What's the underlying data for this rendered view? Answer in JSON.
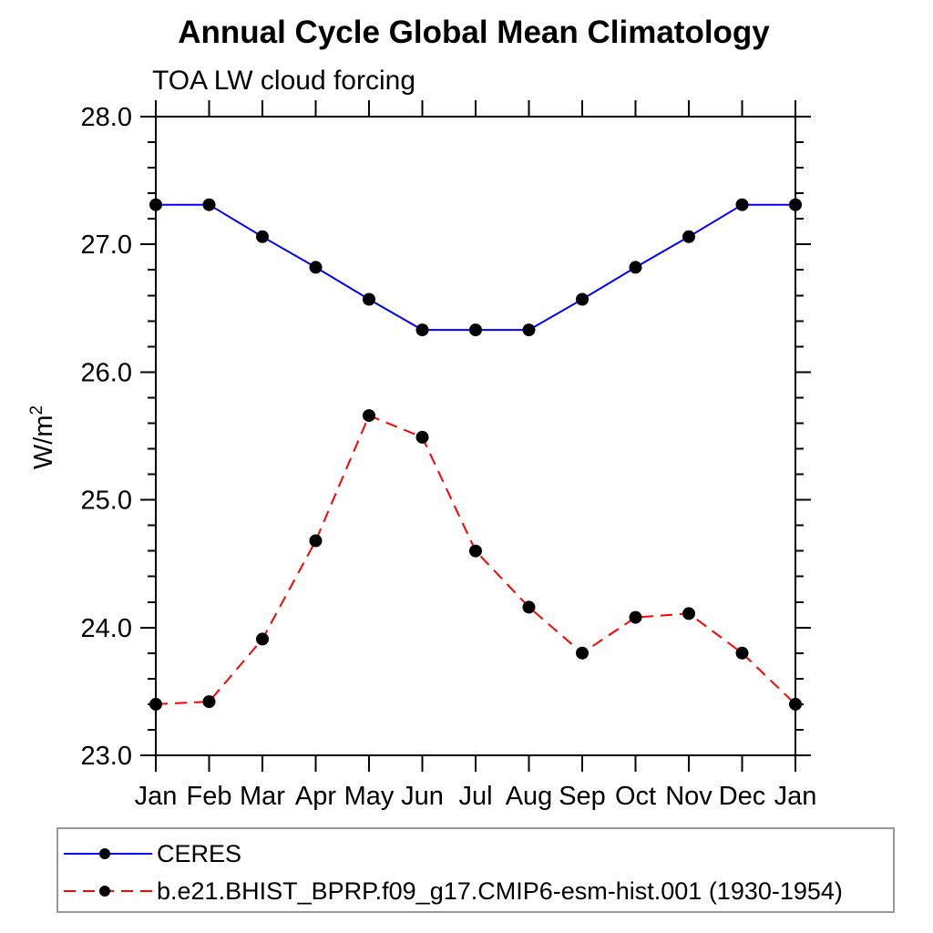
{
  "chart": {
    "title": "Annual Cycle Global Mean Climatology",
    "subtitle": "TOA LW cloud forcing",
    "ylabel_base": "W/m",
    "ylabel_sup": "2"
  },
  "legend": {
    "entries": [
      {
        "label": "CERES",
        "color": "#0000ff",
        "style": "solid",
        "marker": "black-dot"
      },
      {
        "label": "b.e21.BHIST_BPRP.f09_g17.CMIP6-esm-hist.001 (1930-1954)",
        "color": "#ff0000",
        "style": "dashed",
        "marker": "black-dot"
      }
    ]
  },
  "chart_data": {
    "type": "line",
    "title": "Annual Cycle Global Mean Climatology",
    "subtitle": "TOA LW cloud forcing",
    "xlabel": "",
    "ylabel": "W/m2",
    "categories": [
      "Jan",
      "Feb",
      "Mar",
      "Apr",
      "May",
      "Jun",
      "Jul",
      "Aug",
      "Sep",
      "Oct",
      "Nov",
      "Dec",
      "Jan"
    ],
    "series": [
      {
        "name": "CERES",
        "color": "#0000ff",
        "line_style": "solid",
        "marker": "black-dot",
        "values": [
          27.31,
          27.31,
          27.06,
          26.82,
          26.57,
          26.33,
          26.33,
          26.33,
          26.57,
          26.82,
          27.06,
          27.31,
          27.31
        ]
      },
      {
        "name": "b.e21.BHIST_BPRP.f09_g17.CMIP6-esm-hist.001 (1930-1954)",
        "color": "#ff0000",
        "line_style": "dashed",
        "marker": "black-dot",
        "values": [
          23.4,
          23.42,
          23.91,
          24.68,
          25.66,
          25.49,
          24.6,
          24.16,
          23.8,
          24.08,
          24.11,
          23.8,
          23.4
        ]
      }
    ],
    "ylim": [
      23.0,
      28.0
    ],
    "yticks": [
      23.0,
      24.0,
      25.0,
      26.0,
      27.0,
      28.0
    ],
    "ytick_labels": [
      "23.0",
      "24.0",
      "25.0",
      "26.0",
      "27.0",
      "28.0"
    ],
    "y_minor_tick_interval": 0.2,
    "grid": false,
    "legend_position": "bottom"
  }
}
